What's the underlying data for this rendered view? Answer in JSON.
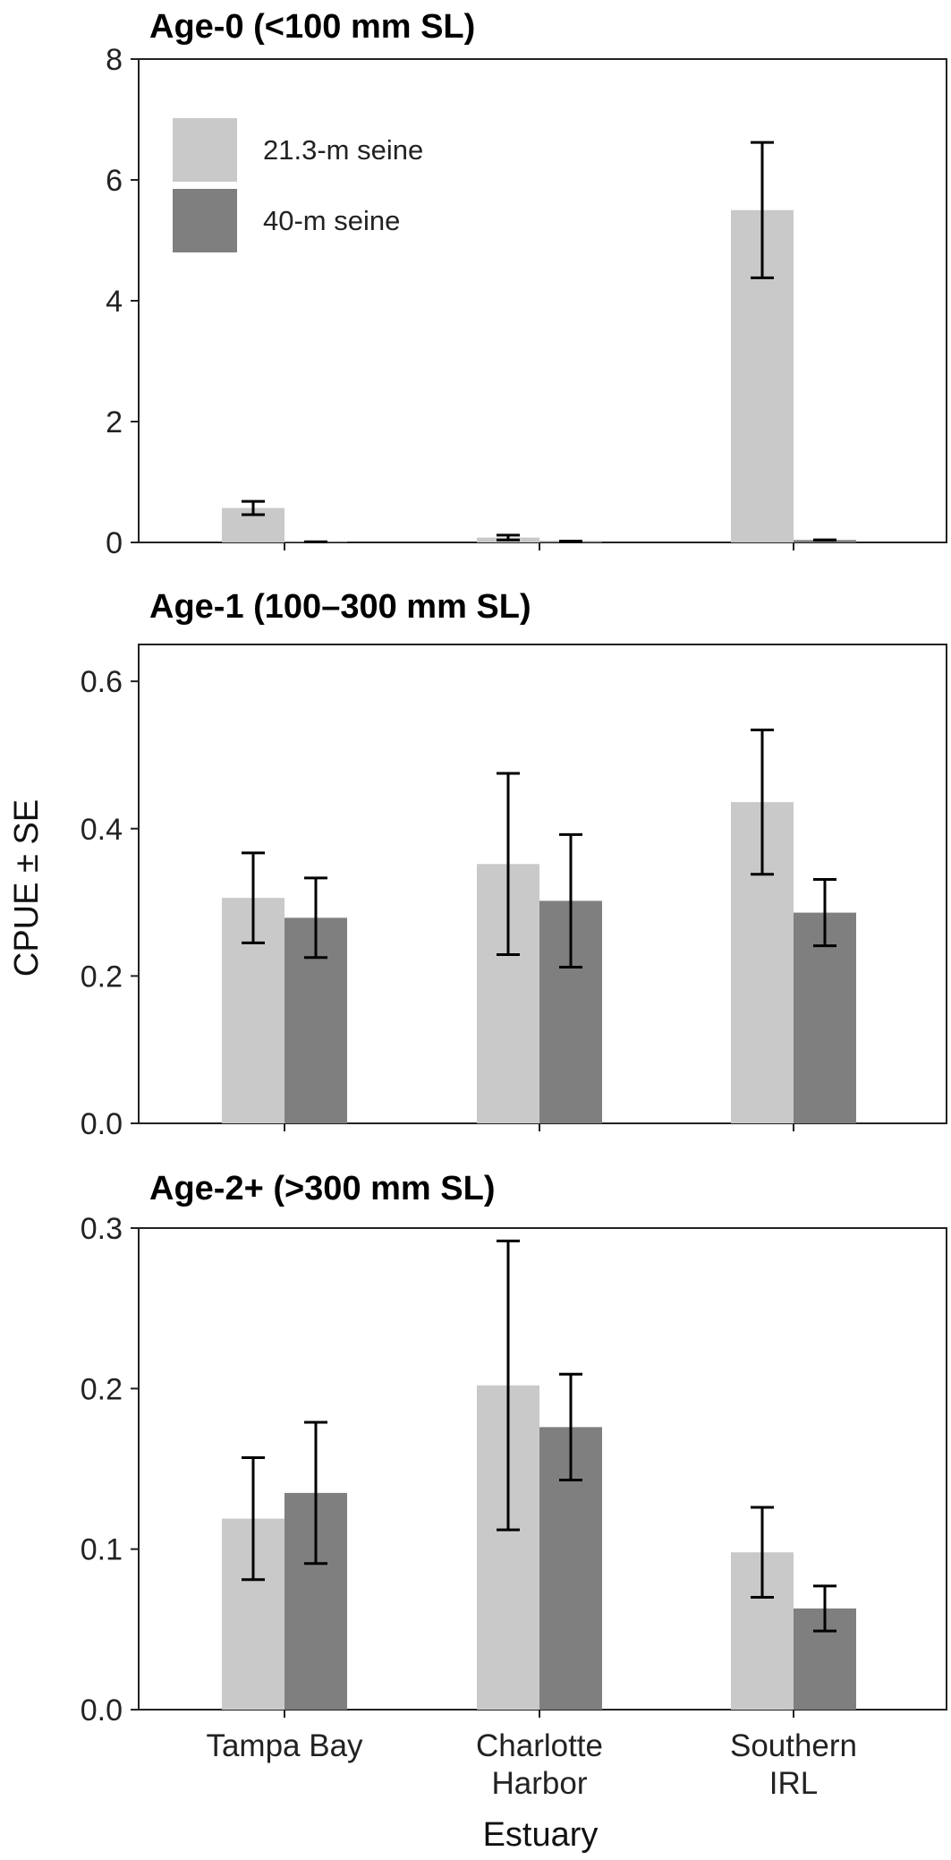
{
  "chart_data": {
    "type": "bar",
    "categories": [
      [
        "Tampa Bay"
      ],
      [
        "Charlotte",
        "Harbor"
      ],
      [
        "Southern",
        "IRL"
      ]
    ],
    "xlabel": "Estuary",
    "ylabel": "CPUE ± SE",
    "legend": {
      "position": "top-left",
      "entries": [
        {
          "name": "21.3-m seine",
          "color": "#c9c9c9"
        },
        {
          "name": "40-m seine",
          "color": "#7f7f7f"
        }
      ]
    },
    "panels": [
      {
        "title": "Age-0 (<100 mm SL)",
        "ylim": [
          0,
          8
        ],
        "yticks": [
          "0",
          "2",
          "4",
          "6",
          "8"
        ],
        "ytick_values": [
          0,
          2,
          4,
          6,
          8
        ],
        "series": [
          {
            "name": "21.3-m seine",
            "values": [
              0.57,
              0.08,
              5.5
            ],
            "se": [
              0.11,
              0.04,
              1.12
            ]
          },
          {
            "name": "40-m seine",
            "values": [
              0.01,
              0.02,
              0.04
            ],
            "se": [
              0.0,
              0.0,
              0.0
            ]
          }
        ]
      },
      {
        "title": "Age-1 (100–300 mm SL)",
        "ylim": [
          0,
          0.65
        ],
        "yticks": [
          "0.0",
          "0.2",
          "0.4",
          "0.6"
        ],
        "ytick_values": [
          0,
          0.2,
          0.4,
          0.6
        ],
        "series": [
          {
            "name": "21.3-m seine",
            "values": [
              0.306,
              0.352,
              0.436
            ],
            "se": [
              0.061,
              0.123,
              0.098
            ]
          },
          {
            "name": "40-m seine",
            "values": [
              0.279,
              0.302,
              0.286
            ],
            "se": [
              0.054,
              0.09,
              0.045
            ]
          }
        ]
      },
      {
        "title": "Age-2+ (>300 mm SL)",
        "ylim": [
          0,
          0.3
        ],
        "yticks": [
          "0.0",
          "0.1",
          "0.2",
          "0.3"
        ],
        "ytick_values": [
          0,
          0.1,
          0.2,
          0.3
        ],
        "series": [
          {
            "name": "21.3-m seine",
            "values": [
              0.119,
              0.202,
              0.098
            ],
            "se": [
              0.038,
              0.09,
              0.028
            ]
          },
          {
            "name": "40-m seine",
            "values": [
              0.135,
              0.176,
              0.063
            ],
            "se": [
              0.044,
              0.033,
              0.014
            ]
          }
        ]
      }
    ]
  }
}
